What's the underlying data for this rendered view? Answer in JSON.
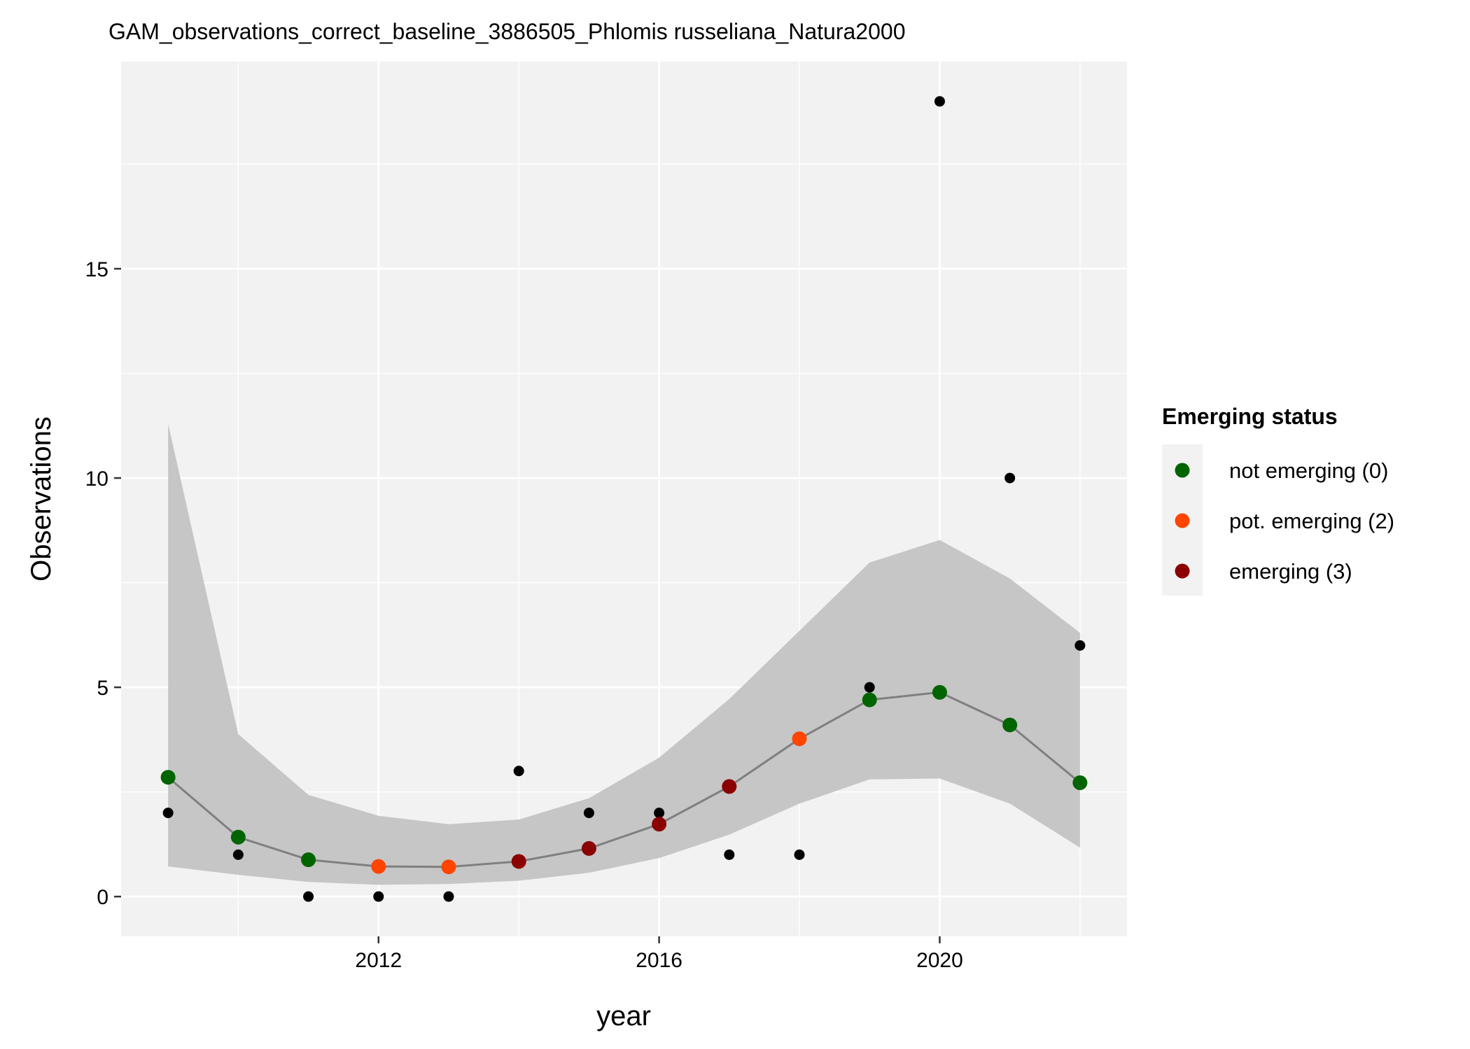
{
  "chart_data": {
    "type": "line",
    "title": "GAM_observations_correct_baseline_3886505_Phlomis russeliana_Natura2000",
    "xlabel": "year",
    "ylabel": "Observations",
    "xlim": [
      2008.33,
      2022.67
    ],
    "ylim": [
      -0.95,
      19.95
    ],
    "x_ticks": [
      2012,
      2016,
      2020
    ],
    "y_ticks": [
      0,
      5,
      10,
      15
    ],
    "grid": true,
    "legend": {
      "title": "Emerging status",
      "position": "right",
      "items": [
        {
          "label": "not emerging (0)",
          "status": 0,
          "color": "#006400"
        },
        {
          "label": "pot. emerging (2)",
          "status": 2,
          "color": "#FF4500"
        },
        {
          "label": "emerging (3)",
          "status": 3,
          "color": "#8B0000"
        }
      ]
    },
    "status_colors": {
      "0": "#006400",
      "2": "#FF4500",
      "3": "#8B0000"
    },
    "ribbon_color": "#C6C6C6",
    "line_color": "#7F7F7F",
    "observed_color": "#000000",
    "observed": {
      "x": [
        2009,
        2010,
        2011,
        2012,
        2013,
        2014,
        2015,
        2016,
        2017,
        2018,
        2019,
        2020,
        2021,
        2022
      ],
      "y": [
        2,
        1,
        0,
        0,
        0,
        3,
        2,
        2,
        1,
        1,
        5,
        19,
        10,
        6
      ]
    },
    "fit": {
      "x": [
        2009,
        2010,
        2011,
        2012,
        2013,
        2014,
        2015,
        2016,
        2017,
        2018,
        2019,
        2020,
        2021,
        2022
      ],
      "y": [
        2.85,
        1.42,
        0.88,
        0.72,
        0.71,
        0.84,
        1.15,
        1.73,
        2.63,
        3.77,
        4.7,
        4.88,
        4.1,
        2.72
      ],
      "lower": [
        0.72,
        0.52,
        0.35,
        0.28,
        0.3,
        0.38,
        0.57,
        0.92,
        1.48,
        2.22,
        2.8,
        2.82,
        2.22,
        1.17
      ],
      "upper": [
        11.3,
        3.88,
        2.43,
        1.93,
        1.73,
        1.84,
        2.35,
        3.32,
        4.72,
        6.35,
        7.98,
        8.52,
        7.6,
        6.3
      ],
      "status": [
        0,
        0,
        0,
        2,
        2,
        3,
        3,
        3,
        3,
        2,
        0,
        0,
        0,
        0
      ]
    }
  }
}
